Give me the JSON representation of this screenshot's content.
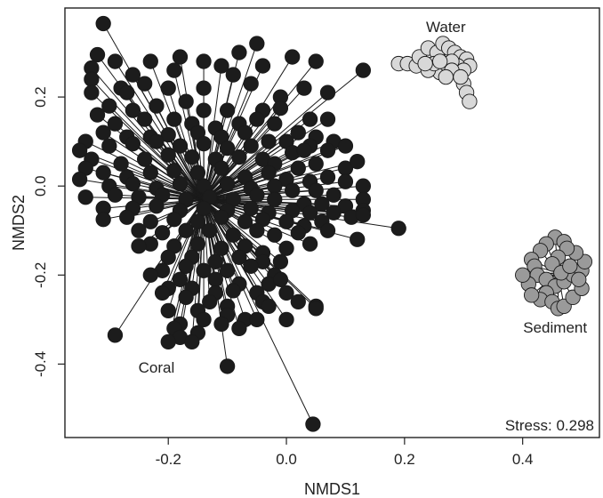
{
  "chart_data": {
    "type": "scatter",
    "title": "",
    "xlabel": "NMDS1",
    "ylabel": "NMDS2",
    "xlim": [
      -0.375,
      0.53
    ],
    "ylim": [
      -0.565,
      0.4
    ],
    "x_ticks": [
      -0.2,
      0.0,
      0.2,
      0.4
    ],
    "x_tick_labels": [
      "-0.2",
      "0.0",
      "0.2",
      "0.4"
    ],
    "y_ticks": [
      -0.4,
      -0.2,
      0.0,
      0.2
    ],
    "y_tick_labels": [
      "-0.4",
      "-0.2",
      "0.0",
      "0.2"
    ],
    "grid": false,
    "legend": "none",
    "stress_label": "Stress: 0.298",
    "series": [
      {
        "name": "Coral",
        "color": "#1c1c1c",
        "label_pos": [
          -0.22,
          -0.41
        ],
        "centroid": [
          -0.14,
          -0.03
        ],
        "points": [
          [
            -0.31,
            0.365
          ],
          [
            -0.32,
            0.295
          ],
          [
            -0.29,
            0.28
          ],
          [
            -0.33,
            0.265
          ],
          [
            -0.26,
            0.25
          ],
          [
            -0.23,
            0.28
          ],
          [
            -0.18,
            0.29
          ],
          [
            -0.14,
            0.28
          ],
          [
            -0.11,
            0.27
          ],
          [
            -0.08,
            0.3
          ],
          [
            -0.05,
            0.32
          ],
          [
            -0.04,
            0.27
          ],
          [
            0.01,
            0.29
          ],
          [
            0.05,
            0.28
          ],
          [
            -0.19,
            0.26
          ],
          [
            -0.33,
            0.24
          ],
          [
            -0.28,
            0.22
          ],
          [
            -0.33,
            0.21
          ],
          [
            -0.27,
            0.21
          ],
          [
            -0.24,
            0.23
          ],
          [
            -0.2,
            0.22
          ],
          [
            -0.14,
            0.22
          ],
          [
            -0.09,
            0.25
          ],
          [
            -0.06,
            0.23
          ],
          [
            -0.01,
            0.2
          ],
          [
            0.03,
            0.22
          ],
          [
            0.07,
            0.21
          ],
          [
            0.13,
            0.26
          ],
          [
            -0.3,
            0.18
          ],
          [
            -0.32,
            0.16
          ],
          [
            -0.26,
            0.17
          ],
          [
            -0.22,
            0.18
          ],
          [
            -0.17,
            0.19
          ],
          [
            -0.14,
            0.17
          ],
          [
            -0.1,
            0.17
          ],
          [
            -0.04,
            0.17
          ],
          [
            -0.01,
            0.175
          ],
          [
            0.04,
            0.15
          ],
          [
            0.07,
            0.15
          ],
          [
            -0.29,
            0.14
          ],
          [
            -0.24,
            0.15
          ],
          [
            -0.19,
            0.15
          ],
          [
            -0.16,
            0.14
          ],
          [
            -0.12,
            0.13
          ],
          [
            -0.08,
            0.14
          ],
          [
            -0.05,
            0.15
          ],
          [
            -0.02,
            0.14
          ],
          [
            0.02,
            0.12
          ],
          [
            0.05,
            0.11
          ],
          [
            -0.34,
            0.1
          ],
          [
            -0.31,
            0.12
          ],
          [
            -0.27,
            0.11
          ],
          [
            -0.23,
            0.11
          ],
          [
            -0.2,
            0.115
          ],
          [
            -0.15,
            0.12
          ],
          [
            -0.11,
            0.11
          ],
          [
            -0.07,
            0.12
          ],
          [
            0.0,
            0.1
          ],
          [
            0.04,
            0.09
          ],
          [
            0.08,
            0.1
          ],
          [
            -0.35,
            0.08
          ],
          [
            -0.3,
            0.09
          ],
          [
            -0.26,
            0.095
          ],
          [
            -0.22,
            0.1
          ],
          [
            -0.18,
            0.09
          ],
          [
            -0.14,
            0.095
          ],
          [
            -0.1,
            0.085
          ],
          [
            -0.06,
            0.09
          ],
          [
            -0.03,
            0.1
          ],
          [
            0.01,
            0.075
          ],
          [
            0.03,
            0.08
          ],
          [
            0.07,
            0.08
          ],
          [
            0.1,
            0.09
          ],
          [
            -0.33,
            0.06
          ],
          [
            -0.28,
            0.05
          ],
          [
            -0.24,
            0.06
          ],
          [
            -0.2,
            0.07
          ],
          [
            -0.16,
            0.065
          ],
          [
            -0.12,
            0.06
          ],
          [
            -0.08,
            0.065
          ],
          [
            -0.04,
            0.06
          ],
          [
            -0.02,
            0.05
          ],
          [
            0.02,
            0.04
          ],
          [
            0.05,
            0.05
          ],
          [
            0.1,
            0.04
          ],
          [
            0.12,
            0.055
          ],
          [
            -0.34,
            0.04
          ],
          [
            -0.31,
            0.03
          ],
          [
            -0.27,
            0.02
          ],
          [
            -0.23,
            0.03
          ],
          [
            -0.19,
            0.035
          ],
          [
            -0.15,
            0.03
          ],
          [
            -0.11,
            0.04
          ],
          [
            -0.07,
            0.02
          ],
          [
            -0.03,
            0.03
          ],
          [
            0.0,
            0.015
          ],
          [
            0.04,
            0.01
          ],
          [
            0.07,
            0.02
          ],
          [
            0.1,
            0.01
          ],
          [
            0.13,
            0.0
          ],
          [
            -0.35,
            0.015
          ],
          [
            -0.3,
            0.0
          ],
          [
            -0.26,
            0.005
          ],
          [
            -0.22,
            -0.005
          ],
          [
            -0.18,
            0.005
          ],
          [
            -0.14,
            0.0
          ],
          [
            -0.1,
            0.005
          ],
          [
            -0.06,
            -0.005
          ],
          [
            -0.02,
            0.0
          ],
          [
            0.01,
            -0.01
          ],
          [
            0.05,
            -0.01
          ],
          [
            0.08,
            -0.02
          ],
          [
            0.13,
            -0.03
          ],
          [
            -0.34,
            -0.025
          ],
          [
            -0.29,
            -0.02
          ],
          [
            -0.25,
            -0.025
          ],
          [
            -0.21,
            -0.02
          ],
          [
            -0.17,
            -0.03
          ],
          [
            -0.13,
            -0.025
          ],
          [
            -0.09,
            -0.03
          ],
          [
            -0.05,
            -0.02
          ],
          [
            -0.02,
            -0.03
          ],
          [
            0.03,
            -0.04
          ],
          [
            0.06,
            -0.04
          ],
          [
            0.1,
            -0.045
          ],
          [
            0.13,
            -0.055
          ],
          [
            -0.31,
            -0.05
          ],
          [
            -0.26,
            -0.05
          ],
          [
            -0.22,
            -0.045
          ],
          [
            -0.18,
            -0.055
          ],
          [
            -0.14,
            -0.05
          ],
          [
            -0.1,
            -0.055
          ],
          [
            -0.06,
            -0.05
          ],
          [
            -0.03,
            -0.06
          ],
          [
            0.01,
            -0.055
          ],
          [
            0.04,
            -0.06
          ],
          [
            0.08,
            -0.06
          ],
          [
            0.11,
            -0.07
          ],
          [
            -0.31,
            -0.075
          ],
          [
            -0.27,
            -0.07
          ],
          [
            -0.23,
            -0.08
          ],
          [
            -0.19,
            -0.075
          ],
          [
            -0.15,
            -0.08
          ],
          [
            -0.11,
            -0.07
          ],
          [
            -0.07,
            -0.08
          ],
          [
            -0.04,
            -0.075
          ],
          [
            0.0,
            -0.08
          ],
          [
            0.03,
            -0.09
          ],
          [
            0.06,
            -0.08
          ],
          [
            0.13,
            -0.065
          ],
          [
            -0.25,
            -0.1
          ],
          [
            -0.21,
            -0.105
          ],
          [
            -0.17,
            -0.1
          ],
          [
            -0.13,
            -0.1
          ],
          [
            -0.09,
            -0.11
          ],
          [
            -0.05,
            -0.1
          ],
          [
            -0.02,
            -0.11
          ],
          [
            0.02,
            -0.105
          ],
          [
            0.07,
            -0.1
          ],
          [
            0.12,
            -0.12
          ],
          [
            0.19,
            -0.095
          ],
          [
            -0.23,
            -0.13
          ],
          [
            -0.19,
            -0.135
          ],
          [
            -0.15,
            -0.13
          ],
          [
            -0.11,
            -0.14
          ],
          [
            -0.07,
            -0.135
          ],
          [
            -0.04,
            -0.15
          ],
          [
            0.0,
            -0.14
          ],
          [
            0.04,
            -0.13
          ],
          [
            -0.25,
            -0.135
          ],
          [
            -0.2,
            -0.16
          ],
          [
            -0.16,
            -0.16
          ],
          [
            -0.12,
            -0.17
          ],
          [
            -0.08,
            -0.16
          ],
          [
            -0.04,
            -0.17
          ],
          [
            -0.01,
            -0.17
          ],
          [
            -0.21,
            -0.19
          ],
          [
            -0.17,
            -0.18
          ],
          [
            -0.14,
            -0.19
          ],
          [
            -0.1,
            -0.19
          ],
          [
            -0.06,
            -0.18
          ],
          [
            -0.02,
            -0.2
          ],
          [
            -0.23,
            -0.2
          ],
          [
            -0.18,
            -0.21
          ],
          [
            -0.12,
            -0.21
          ],
          [
            -0.08,
            -0.22
          ],
          [
            -0.03,
            -0.22
          ],
          [
            -0.2,
            -0.23
          ],
          [
            -0.16,
            -0.23
          ],
          [
            -0.12,
            -0.24
          ],
          [
            -0.09,
            -0.235
          ],
          [
            -0.05,
            -0.24
          ],
          [
            -0.21,
            -0.24
          ],
          [
            -0.17,
            -0.25
          ],
          [
            -0.13,
            -0.26
          ],
          [
            -0.01,
            -0.21
          ],
          [
            0.0,
            -0.24
          ],
          [
            0.02,
            -0.26
          ],
          [
            0.05,
            -0.27
          ],
          [
            -0.04,
            -0.26
          ],
          [
            -0.1,
            -0.27
          ],
          [
            -0.15,
            -0.28
          ],
          [
            -0.2,
            -0.28
          ],
          [
            -0.18,
            -0.31
          ],
          [
            -0.14,
            -0.3
          ],
          [
            -0.1,
            -0.29
          ],
          [
            -0.07,
            -0.3
          ],
          [
            -0.11,
            -0.31
          ],
          [
            -0.15,
            -0.33
          ],
          [
            -0.03,
            -0.27
          ],
          [
            -0.05,
            -0.3
          ],
          [
            -0.08,
            -0.32
          ],
          [
            -0.19,
            -0.32
          ],
          [
            -0.18,
            -0.34
          ],
          [
            -0.2,
            -0.35
          ],
          [
            -0.16,
            -0.35
          ],
          [
            0.05,
            -0.275
          ],
          [
            0.0,
            -0.3
          ],
          [
            -0.29,
            -0.335
          ],
          [
            -0.1,
            -0.405
          ],
          [
            0.045,
            -0.535
          ]
        ]
      },
      {
        "name": "Water",
        "color": "#d8d8d8",
        "label_pos": [
          0.27,
          0.355
        ],
        "centroid": [
          0.27,
          0.28
        ],
        "points": [
          [
            0.19,
            0.275
          ],
          [
            0.205,
            0.275
          ],
          [
            0.22,
            0.27
          ],
          [
            0.225,
            0.29
          ],
          [
            0.24,
            0.31
          ],
          [
            0.255,
            0.3
          ],
          [
            0.265,
            0.32
          ],
          [
            0.275,
            0.31
          ],
          [
            0.285,
            0.3
          ],
          [
            0.295,
            0.29
          ],
          [
            0.305,
            0.285
          ],
          [
            0.31,
            0.27
          ],
          [
            0.29,
            0.27
          ],
          [
            0.26,
            0.255
          ],
          [
            0.24,
            0.26
          ],
          [
            0.25,
            0.275
          ],
          [
            0.27,
            0.275
          ],
          [
            0.28,
            0.28
          ],
          [
            0.3,
            0.26
          ],
          [
            0.28,
            0.26
          ],
          [
            0.27,
            0.245
          ],
          [
            0.3,
            0.23
          ],
          [
            0.305,
            0.21
          ],
          [
            0.31,
            0.19
          ],
          [
            0.295,
            0.245
          ],
          [
            0.235,
            0.275
          ],
          [
            0.26,
            0.28
          ]
        ]
      },
      {
        "name": "Sediment",
        "color": "#9a9a9a",
        "label_pos": [
          0.455,
          -0.32
        ],
        "centroid": [
          0.46,
          -0.195
        ],
        "points": [
          [
            0.455,
            -0.115
          ],
          [
            0.47,
            -0.125
          ],
          [
            0.44,
            -0.13
          ],
          [
            0.43,
            -0.145
          ],
          [
            0.415,
            -0.165
          ],
          [
            0.42,
            -0.18
          ],
          [
            0.425,
            -0.2
          ],
          [
            0.44,
            -0.21
          ],
          [
            0.455,
            -0.225
          ],
          [
            0.47,
            -0.215
          ],
          [
            0.485,
            -0.2
          ],
          [
            0.5,
            -0.19
          ],
          [
            0.505,
            -0.17
          ],
          [
            0.49,
            -0.15
          ],
          [
            0.475,
            -0.14
          ],
          [
            0.46,
            -0.16
          ],
          [
            0.45,
            -0.175
          ],
          [
            0.44,
            -0.24
          ],
          [
            0.43,
            -0.255
          ],
          [
            0.45,
            -0.26
          ],
          [
            0.46,
            -0.275
          ],
          [
            0.47,
            -0.27
          ],
          [
            0.485,
            -0.25
          ],
          [
            0.5,
            -0.23
          ],
          [
            0.495,
            -0.21
          ],
          [
            0.41,
            -0.22
          ],
          [
            0.415,
            -0.245
          ],
          [
            0.465,
            -0.195
          ],
          [
            0.48,
            -0.18
          ],
          [
            0.4,
            -0.2
          ]
        ]
      }
    ]
  }
}
